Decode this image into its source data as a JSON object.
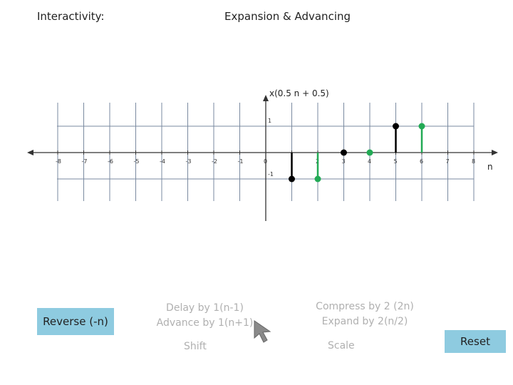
{
  "header": {
    "interactivity_label": "Interactivity:",
    "section_title": "Expansion & Advancing"
  },
  "plot": {
    "function_label": "x(0.5 n + 0.5)",
    "n_label": "n",
    "x_ticks": [
      -8,
      -7,
      -6,
      -5,
      -4,
      -3,
      -2,
      -1,
      0,
      1,
      2,
      3,
      4,
      5,
      6,
      7,
      8
    ],
    "x_tick_labels": [
      "-8",
      "-7",
      "-6",
      "-5",
      "-4",
      "-3",
      "-2",
      "-1",
      "0",
      "",
      "2",
      "3",
      "4",
      "5",
      "6",
      "7",
      "8"
    ],
    "y_tick_labels": {
      "pos": "1",
      "neg": "-1"
    },
    "signal_black": [
      {
        "n": 1,
        "value": -1
      },
      {
        "n": 3,
        "value": 0
      },
      {
        "n": 5,
        "value": 1
      }
    ],
    "signal_green": [
      {
        "n": 2,
        "value": -1
      },
      {
        "n": 4,
        "value": 0
      },
      {
        "n": 6,
        "value": 1
      }
    ],
    "colors": {
      "black_series": "#000000",
      "green_series": "#22aa55",
      "grid": "#7a8aa0",
      "axis": "#333333"
    }
  },
  "controls": {
    "reverse_label": "Reverse (-n)",
    "reset_label": "Reset",
    "shift": {
      "line1": "Delay by 1(n-1)",
      "line2": "Advance by 1(n+1)",
      "title": "Shift"
    },
    "scale": {
      "line1": "Compress by 2 (2n)",
      "line2": "Expand by 2(n/2)",
      "title": "Scale"
    }
  }
}
